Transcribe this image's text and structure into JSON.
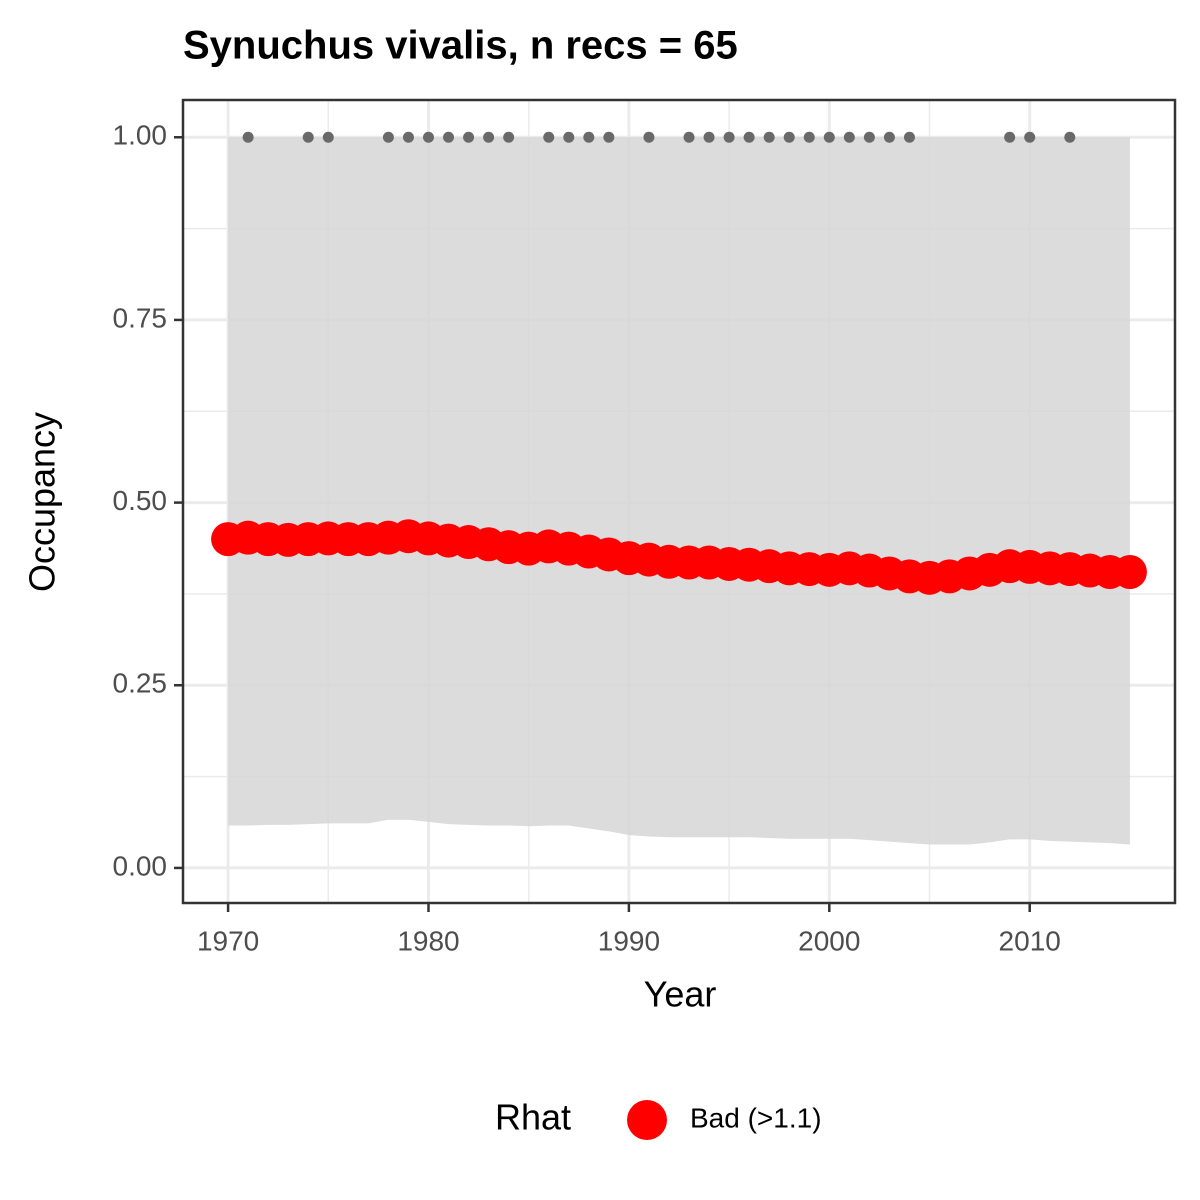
{
  "chart_data": {
    "type": "point",
    "title": "Synuchus vivalis, n recs = 65",
    "x_label": "Year",
    "y_label": "Occupancy",
    "legend_title": "Rhat",
    "x": [
      1970,
      1971,
      1972,
      1973,
      1974,
      1975,
      1976,
      1977,
      1978,
      1979,
      1980,
      1981,
      1982,
      1983,
      1984,
      1985,
      1986,
      1987,
      1988,
      1989,
      1990,
      1991,
      1992,
      1993,
      1994,
      1995,
      1996,
      1997,
      1998,
      1999,
      2000,
      2001,
      2002,
      2003,
      2004,
      2005,
      2006,
      2007,
      2008,
      2009,
      2010,
      2011,
      2012,
      2013,
      2014,
      2015
    ],
    "series": [
      {
        "name": "Bad (>1.1)",
        "color": "#ff0000",
        "values": [
          0.45,
          0.452,
          0.45,
          0.449,
          0.45,
          0.451,
          0.45,
          0.45,
          0.452,
          0.454,
          0.451,
          0.448,
          0.446,
          0.443,
          0.439,
          0.437,
          0.44,
          0.437,
          0.433,
          0.429,
          0.424,
          0.422,
          0.419,
          0.418,
          0.418,
          0.416,
          0.415,
          0.413,
          0.41,
          0.409,
          0.408,
          0.41,
          0.407,
          0.403,
          0.399,
          0.397,
          0.399,
          0.403,
          0.408,
          0.413,
          0.412,
          0.41,
          0.409,
          0.407,
          0.405,
          0.405
        ]
      }
    ],
    "band": {
      "color": "#d6d6d6",
      "lower": [
        0.058,
        0.058,
        0.059,
        0.059,
        0.06,
        0.061,
        0.061,
        0.061,
        0.066,
        0.066,
        0.063,
        0.06,
        0.059,
        0.058,
        0.058,
        0.057,
        0.058,
        0.058,
        0.054,
        0.05,
        0.045,
        0.043,
        0.042,
        0.042,
        0.042,
        0.042,
        0.042,
        0.041,
        0.04,
        0.04,
        0.04,
        0.04,
        0.038,
        0.036,
        0.034,
        0.032,
        0.032,
        0.032,
        0.035,
        0.039,
        0.039,
        0.037,
        0.036,
        0.035,
        0.034,
        0.032
      ],
      "upper": [
        1,
        1,
        1,
        1,
        1,
        1,
        1,
        1,
        1,
        1,
        1,
        1,
        1,
        1,
        1,
        1,
        1,
        1,
        1,
        1,
        1,
        1,
        1,
        1,
        1,
        1,
        1,
        1,
        1,
        1,
        1,
        1,
        1,
        1,
        1,
        1,
        1,
        1,
        1,
        1,
        1,
        1,
        1,
        1,
        1,
        1
      ]
    },
    "records": {
      "color": "#696969",
      "x": [
        1971,
        1974,
        1975,
        1978,
        1979,
        1980,
        1981,
        1982,
        1983,
        1984,
        1986,
        1987,
        1988,
        1989,
        1991,
        1993,
        1994,
        1995,
        1996,
        1997,
        1998,
        1999,
        2000,
        2001,
        2002,
        2003,
        2004,
        2009,
        2010,
        2012
      ],
      "values": [
        1,
        1,
        1,
        1,
        1,
        1,
        1,
        1,
        1,
        1,
        1,
        1,
        1,
        1,
        1,
        1,
        1,
        1,
        1,
        1,
        1,
        1,
        1,
        1,
        1,
        1,
        1,
        1,
        1,
        1
      ]
    },
    "xlim": [
      1967.75,
      2017.25
    ],
    "ylim": [
      -0.048,
      1.051
    ],
    "xticks": [
      1970,
      1980,
      1990,
      2000,
      2010
    ],
    "yticks": [
      {
        "value": 0,
        "label": "0.00"
      },
      {
        "value": 0.25,
        "label": "0.25"
      },
      {
        "value": 0.5,
        "label": "0.50"
      },
      {
        "value": 0.75,
        "label": "0.75"
      },
      {
        "value": 1,
        "label": "1.00"
      }
    ],
    "grid": true
  }
}
